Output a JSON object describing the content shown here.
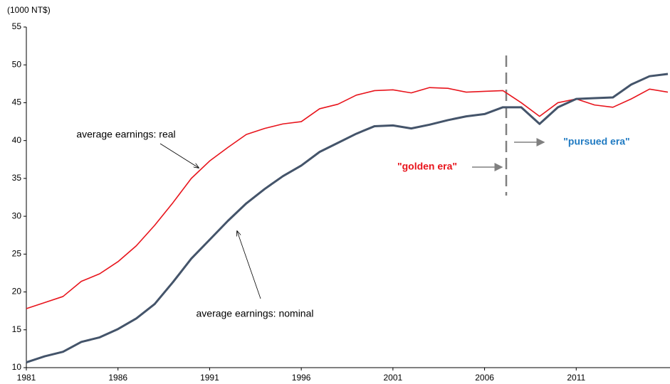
{
  "chart_data": {
    "type": "line",
    "y_axis_label": "(1000 NT$)",
    "x": [
      1981,
      1982,
      1983,
      1984,
      1985,
      1986,
      1987,
      1988,
      1989,
      1990,
      1991,
      1992,
      1993,
      1994,
      1995,
      1996,
      1997,
      1998,
      1999,
      2000,
      2001,
      2002,
      2003,
      2004,
      2005,
      2006,
      2007,
      2008,
      2009,
      2010,
      2011,
      2012,
      2013,
      2014,
      2015,
      2016
    ],
    "series": [
      {
        "name": "average earnings: real",
        "color": "#e8141c",
        "values": [
          17.8,
          18.6,
          19.4,
          21.4,
          22.4,
          24.0,
          26.1,
          28.8,
          31.8,
          35.0,
          37.3,
          39.1,
          40.8,
          41.6,
          42.2,
          42.5,
          44.2,
          44.8,
          46.0,
          46.6,
          46.7,
          46.3,
          47.0,
          46.9,
          46.4,
          46.5,
          46.6,
          45.0,
          43.2,
          45.0,
          45.5,
          44.7,
          44.4,
          45.5,
          46.8,
          46.4
        ]
      },
      {
        "name": "average earnings: nominal",
        "color": "#44546a",
        "values": [
          10.7,
          11.5,
          12.1,
          13.4,
          14.0,
          15.1,
          16.5,
          18.4,
          21.3,
          24.4,
          26.9,
          29.4,
          31.7,
          33.6,
          35.3,
          36.7,
          38.5,
          39.7,
          40.9,
          41.9,
          42.0,
          41.6,
          42.1,
          42.7,
          43.2,
          43.5,
          44.4,
          44.4,
          42.2,
          44.4,
          45.5,
          45.6,
          45.7,
          47.4,
          48.5,
          48.8
        ]
      }
    ],
    "xlim": [
      1981,
      2016
    ],
    "xticks": [
      1981,
      1986,
      1991,
      1996,
      2001,
      2006,
      2011
    ],
    "ylim": [
      10,
      55
    ],
    "yticks": [
      10,
      15,
      20,
      25,
      30,
      35,
      40,
      45,
      50,
      55
    ],
    "annotations": [
      "\"golden era\"",
      "\"pursued era\""
    ]
  }
}
